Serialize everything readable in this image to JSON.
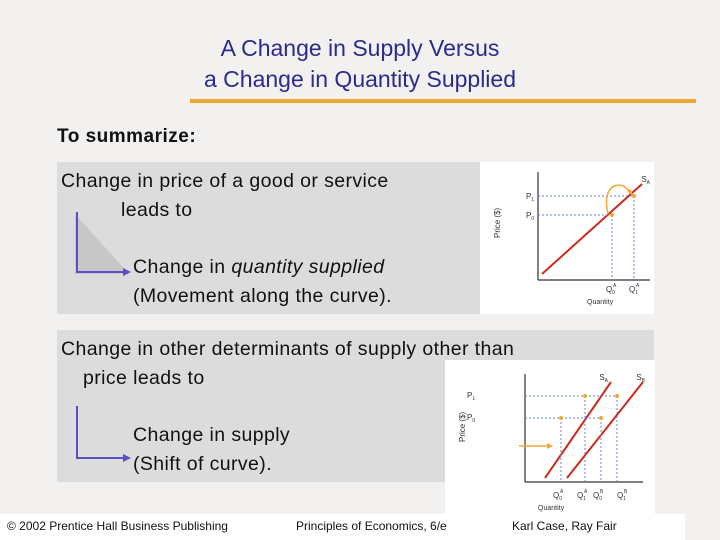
{
  "slide": {
    "title_line1": "A Change in Supply Versus",
    "title_line2": "a Change in Quantity Supplied",
    "summary_label": "To summarize:"
  },
  "panel_top": {
    "line1": "Change in price of a good or service",
    "line2": "leads to",
    "result_line1_prefix": "Change in ",
    "result_line1_italic": "quantity supplied",
    "result_line2": "(Movement along the curve).",
    "graph": {
      "y_axis_label": "Price ($)",
      "x_axis_label": "Quantity",
      "p1": "P",
      "p1_sub": "1",
      "p0": "P",
      "p0_sub": "0",
      "curve": "S",
      "curve_sub": "A",
      "q0": "Q",
      "q0_sub": "0",
      "q0_sup": "A",
      "q1": "Q",
      "q1_sub": "1",
      "q1_sup": "A"
    }
  },
  "panel_bottom": {
    "line1": "Change in other determinants of supply other than",
    "line2": "price leads to",
    "result_line1": "Change in supply",
    "result_line2": "(Shift of curve).",
    "graph": {
      "y_axis_label": "Price ($)",
      "x_axis_label": "Quantity",
      "p1": "P",
      "p1_sub": "1",
      "p0": "P",
      "p0_sub": "0",
      "curve_a": "S",
      "curve_a_sub": "A",
      "curve_b": "S",
      "curve_b_sub": "B",
      "q0a": "Q",
      "q0a_sub": "0",
      "q0a_sup": "A",
      "q1a": "Q",
      "q1a_sub": "1",
      "q1a_sup": "A",
      "q0b": "Q",
      "q0b_sub": "0",
      "q0b_sup": "B",
      "q1b": "Q",
      "q1b_sub": "1",
      "q1b_sup": "B"
    }
  },
  "footer": {
    "copyright": "© 2002 Prentice Hall Business Publishing",
    "book": "Principles of Economics, 6/e",
    "authors": "Karl Case, Ray Fair"
  },
  "colors": {
    "title": "#2c2a8c",
    "rule": "#f0a830",
    "panel": "#dcdcdc",
    "curve": "#cc2b1f",
    "arrow": "#f0a830",
    "bracket": "#5b4fc4",
    "dashed": "#6a7fd6"
  }
}
